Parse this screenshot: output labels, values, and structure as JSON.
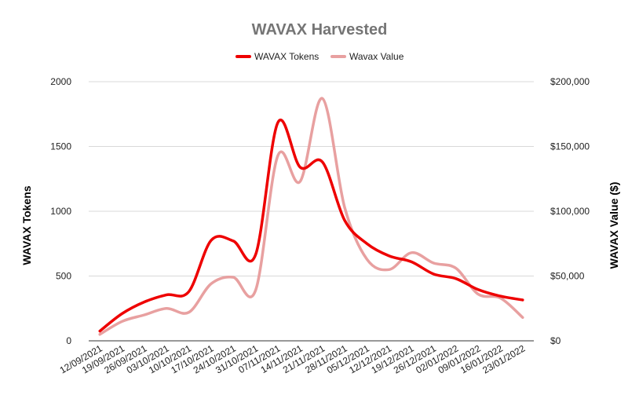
{
  "chart_data": {
    "type": "line",
    "title": "WAVAX Harvested",
    "categories": [
      "12/09/2021",
      "19/09/2021",
      "26/09/2021",
      "03/10/2021",
      "10/10/2021",
      "17/10/2021",
      "24/10/2021",
      "31/10/2021",
      "07/11/2021",
      "14/11/2021",
      "21/11/2021",
      "28/11/2021",
      "05/12/2021",
      "12/12/2021",
      "19/12/2021",
      "26/12/2021",
      "02/01/2022",
      "09/01/2022",
      "16/01/2022",
      "23/01/2022"
    ],
    "series": [
      {
        "name": "WAVAX Tokens",
        "axis": "left",
        "color": "#ee0000",
        "values": [
          75,
          210,
          300,
          355,
          380,
          775,
          770,
          665,
          1685,
          1340,
          1380,
          930,
          750,
          655,
          610,
          515,
          480,
          395,
          345,
          315
        ]
      },
      {
        "name": "Wavax Value",
        "axis": "right",
        "color": "#e8a0a0",
        "values": [
          5000,
          15000,
          20000,
          25000,
          22000,
          44000,
          49000,
          39000,
          143000,
          123000,
          187000,
          103000,
          63000,
          55000,
          68000,
          60000,
          56000,
          36000,
          33000,
          18000
        ]
      }
    ],
    "y_left": {
      "label": "WAVAX Tokens",
      "lim": [
        0,
        2000
      ],
      "ticks": [
        "0",
        "500",
        "1000",
        "1500",
        "2000"
      ]
    },
    "y_right": {
      "label": "WAVAX Value ($)",
      "lim": [
        0,
        200000
      ],
      "ticks": [
        "$0",
        "$50,000",
        "$100,000",
        "$150,000",
        "$200,000"
      ]
    },
    "grid": true,
    "legend_position": "top"
  }
}
